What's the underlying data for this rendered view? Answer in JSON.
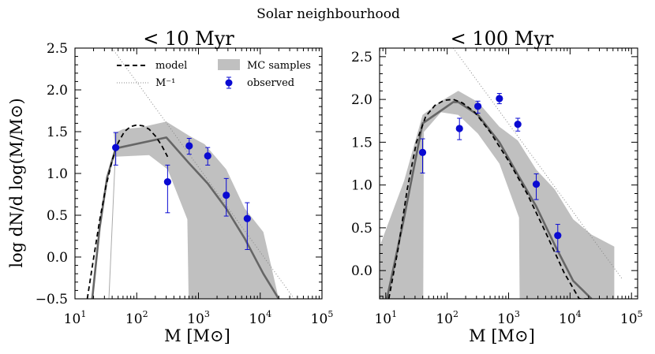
{
  "figure_title": "Solar neighbourhood",
  "y_axis_label": "log dN/d log(M/M⊙)",
  "colors": {
    "model": "#000000",
    "mc_band": "#c0c0c0",
    "median": "#666666",
    "observed": "#0a0ad2",
    "power_law": "#888888"
  },
  "chart_data": [
    {
      "type": "line",
      "title": "< 10 Myr",
      "xlabel": "M [M⊙]",
      "ylabel": "log dN/d log(M/M⊙)",
      "xscale": "log",
      "xlim_log10": [
        1,
        5
      ],
      "ylim": [
        -0.5,
        2.5
      ],
      "x_ticks": [
        {
          "base": "10",
          "exp": "1"
        },
        {
          "base": "10",
          "exp": "2"
        },
        {
          "base": "10",
          "exp": "3"
        },
        {
          "base": "10",
          "exp": "4"
        },
        {
          "base": "10",
          "exp": "5"
        }
      ],
      "y_ticks": [
        "−0.5",
        "0.0",
        "0.5",
        "1.0",
        "1.5",
        "2.0",
        "2.5"
      ],
      "legend": {
        "position": "top",
        "entries": {
          "model": "model",
          "power_law": "M⁻¹",
          "mc": "MC samples",
          "observed": "observed"
        }
      },
      "model": {
        "log_x": [
          1.2,
          1.3,
          1.4,
          1.5,
          1.6,
          1.7,
          1.8,
          1.9,
          2.0,
          2.1,
          2.2,
          2.3,
          2.4,
          2.5
        ],
        "y": [
          -0.5,
          -0.02,
          0.44,
          0.84,
          1.15,
          1.37,
          1.5,
          1.56,
          1.58,
          1.57,
          1.53,
          1.45,
          1.34,
          1.2
        ]
      },
      "median": {
        "log_x": [
          1.28,
          1.4,
          1.52,
          1.66,
          2.48,
          2.85,
          3.15,
          3.45,
          3.75,
          4.05,
          4.3
        ],
        "y": [
          -0.5,
          0.35,
          0.95,
          1.3,
          1.43,
          1.12,
          0.88,
          0.58,
          0.22,
          -0.2,
          -0.5
        ]
      },
      "mc_band": {
        "upper": {
          "log_x": [
            1.63,
            1.78,
            2.05,
            2.48,
            2.85,
            3.1,
            3.45,
            3.75,
            4.05,
            4.3
          ],
          "y": [
            1.48,
            1.53,
            1.55,
            1.62,
            1.45,
            1.35,
            1.05,
            0.58,
            0.3,
            -0.5
          ]
        },
        "lower": {
          "log_x": [
            4.3,
            4.05,
            3.75,
            3.45,
            3.15,
            2.85,
            2.84,
            2.82,
            2.5,
            2.2,
            1.66,
            1.63
          ],
          "y": [
            -0.5,
            -0.5,
            -0.5,
            -0.5,
            -0.5,
            -0.5,
            -0.5,
            0.45,
            1.05,
            1.22,
            1.2,
            1.48
          ]
        }
      },
      "thin_line": {
        "log_x": [
          1.55,
          1.64,
          1.66
        ],
        "y": [
          -0.5,
          1.0,
          1.3
        ]
      },
      "power_law": {
        "log_x": [
          1.6,
          4.55
        ],
        "y": [
          2.5,
          -0.5
        ]
      },
      "observed": [
        {
          "log_x": 1.66,
          "y": 1.31,
          "lo": 1.1,
          "hi": 1.49
        },
        {
          "log_x": 2.5,
          "y": 0.9,
          "lo": 0.53,
          "hi": 1.1
        },
        {
          "log_x": 2.85,
          "y": 1.33,
          "lo": 1.23,
          "hi": 1.42
        },
        {
          "log_x": 3.15,
          "y": 1.21,
          "lo": 1.1,
          "hi": 1.31
        },
        {
          "log_x": 3.45,
          "y": 0.74,
          "lo": 0.49,
          "hi": 0.94
        },
        {
          "log_x": 3.79,
          "y": 0.46,
          "lo": 0.09,
          "hi": 0.65
        }
      ]
    },
    {
      "type": "line",
      "title": "< 100 Myr",
      "xlabel": "M [M⊙]",
      "ylabel": "",
      "xscale": "log",
      "xlim_log10": [
        0.9,
        5.1
      ],
      "ylim": [
        -0.33,
        2.6
      ],
      "x_ticks": [
        {
          "base": "10",
          "exp": "1"
        },
        {
          "base": "10",
          "exp": "2"
        },
        {
          "base": "10",
          "exp": "3"
        },
        {
          "base": "10",
          "exp": "4"
        },
        {
          "base": "10",
          "exp": "5"
        }
      ],
      "y_ticks": [
        "0.0",
        "0.5",
        "1.0",
        "1.5",
        "2.0",
        "2.5"
      ],
      "model": {
        "log_x": [
          1.05,
          1.2,
          1.35,
          1.5,
          1.65,
          1.8,
          1.95,
          2.1,
          2.25,
          2.45,
          2.7,
          3.0,
          3.3,
          3.6,
          3.9,
          4.15,
          4.35
        ],
        "y": [
          -0.33,
          0.25,
          0.95,
          1.5,
          1.8,
          1.93,
          1.99,
          2.0,
          1.96,
          1.85,
          1.62,
          1.28,
          0.9,
          0.45,
          -0.02,
          -0.33,
          -0.33
        ]
      },
      "median": {
        "log_x": [
          1.02,
          1.28,
          1.6,
          2.1,
          2.18,
          2.5,
          2.85,
          3.15,
          3.45,
          3.75,
          4.05,
          4.35
        ],
        "y": [
          -0.33,
          0.55,
          1.72,
          1.97,
          1.97,
          1.82,
          1.5,
          1.12,
          0.75,
          0.3,
          -0.12,
          -0.33
        ]
      },
      "mc_band": {
        "upper": {
          "log_x": [
            0.9,
            1.3,
            1.6,
            1.9,
            2.18,
            2.5,
            2.85,
            3.15,
            3.45,
            3.75,
            4.05,
            4.35,
            4.72
          ],
          "y": [
            0.28,
            1.05,
            1.82,
            1.98,
            2.1,
            1.97,
            1.68,
            1.52,
            1.18,
            0.95,
            0.6,
            0.42,
            0.28
          ]
        },
        "lower": {
          "log_x": [
            4.72,
            4.35,
            4.05,
            3.75,
            3.45,
            3.18,
            3.17,
            2.85,
            2.5,
            2.18,
            1.9,
            1.62,
            1.61,
            1.3,
            0.9
          ],
          "y": [
            -0.33,
            -0.33,
            -0.33,
            -0.33,
            -0.33,
            -0.33,
            0.62,
            1.25,
            1.6,
            1.82,
            1.85,
            1.62,
            -0.33,
            -0.33,
            -0.33
          ]
        }
      },
      "power_law": {
        "log_x": [
          2.1,
          4.85
        ],
        "y": [
          2.6,
          -0.1
        ]
      },
      "observed": [
        {
          "log_x": 1.6,
          "y": 1.38,
          "lo": 1.14,
          "hi": 1.54
        },
        {
          "log_x": 2.2,
          "y": 1.66,
          "lo": 1.53,
          "hi": 1.78
        },
        {
          "log_x": 2.5,
          "y": 1.92,
          "lo": 1.84,
          "hi": 1.98
        },
        {
          "log_x": 2.85,
          "y": 2.01,
          "lo": 1.95,
          "hi": 2.07
        },
        {
          "log_x": 3.15,
          "y": 1.71,
          "lo": 1.63,
          "hi": 1.78
        },
        {
          "log_x": 3.45,
          "y": 1.01,
          "lo": 0.83,
          "hi": 1.13
        },
        {
          "log_x": 3.8,
          "y": 0.41,
          "lo": 0.22,
          "hi": 0.54
        }
      ]
    }
  ]
}
